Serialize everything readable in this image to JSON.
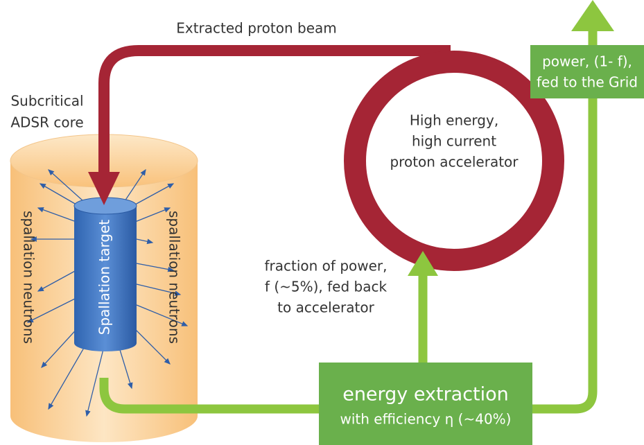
{
  "diagram": {
    "beam_label": "Extracted proton beam",
    "core_label": [
      "Subcritical",
      "ADSR core"
    ],
    "accelerator_label": [
      "High energy,",
      "high current",
      "proton accelerator"
    ],
    "target_label": "Spallation target",
    "neutrons_left": "spallation neutrons",
    "neutrons_right": "spallation neutrons",
    "feedback_label": [
      "fraction of power,",
      "f (~5%), fed back",
      "to accelerator"
    ],
    "grid_label": [
      "power, (1- f),",
      "fed to the Grid"
    ],
    "extraction_title": "energy extraction",
    "extraction_subtitle": "with efficiency η (~40%)"
  }
}
